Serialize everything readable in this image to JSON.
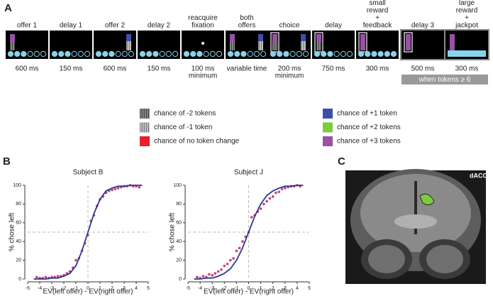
{
  "panel_labels": {
    "a": "A",
    "b": "B",
    "c": "C"
  },
  "timeline": {
    "stages": [
      {
        "label": [
          "offer 1"
        ],
        "duration": [
          "600 ms"
        ]
      },
      {
        "label": [
          "delay 1"
        ],
        "duration": [
          "150 ms"
        ]
      },
      {
        "label": [
          "offer 2"
        ],
        "duration": [
          "600 ms"
        ]
      },
      {
        "label": [
          "delay 2"
        ],
        "duration": [
          "150 ms"
        ]
      },
      {
        "label": [
          "reacquire",
          "fixation"
        ],
        "duration": [
          "100 ms",
          "minimum"
        ]
      },
      {
        "label": [
          "both",
          "offers"
        ],
        "duration": [
          "variable time"
        ]
      },
      {
        "label": [
          "choice"
        ],
        "duration": [
          "200 ms",
          "minimum"
        ]
      },
      {
        "label": [
          "delay"
        ],
        "duration": [
          "750 ms"
        ]
      },
      {
        "label": [
          "small",
          "reward",
          "+",
          "feedback"
        ],
        "duration": [
          "300 ms"
        ]
      },
      {
        "label": [
          "delay 3"
        ],
        "duration": [
          "500 ms"
        ]
      },
      {
        "label": [
          "large",
          "reward",
          "+",
          "jackpot"
        ],
        "duration": [
          "300 ms"
        ]
      }
    ],
    "note": "when tokens ≥ 6"
  },
  "legend": {
    "items": [
      "chance of -2 tokens",
      "chance of -1 token",
      "chance of no token change",
      "chance of +1 token",
      "chance of +2 tokens",
      "chance of +3 tokens"
    ]
  },
  "chart_data": [
    {
      "type": "scatter",
      "title": "Subject B",
      "x_label": "EV(left offer) - EV(right offer)",
      "y_label": "% chose left",
      "xlim": [
        -5,
        5
      ],
      "xticks": [
        -5,
        -4,
        -3,
        -2,
        -1,
        0,
        1,
        2,
        3,
        4,
        5
      ],
      "ylim": [
        0,
        100
      ],
      "yticks": [
        0,
        20,
        40,
        60,
        80,
        100
      ],
      "hlines": [
        50
      ],
      "vlines": [
        0
      ],
      "series": [
        {
          "mode": "markers",
          "color": "#c7407f",
          "x": [
            -4.25,
            -4,
            -3.75,
            -3.5,
            -3.25,
            -3,
            -2.75,
            -2.5,
            -2.25,
            -2,
            -1.75,
            -1.5,
            -1.25,
            -1,
            -0.75,
            -0.5,
            -0.25,
            0,
            0.25,
            0.5,
            0.75,
            1,
            1.25,
            1.5,
            1.75,
            2,
            2.25,
            2.5,
            2.75,
            3,
            3.25,
            3.5,
            3.75,
            4,
            4.25
          ],
          "values": [
            2,
            1,
            1,
            2,
            1,
            2,
            2,
            3,
            3,
            4,
            6,
            8,
            12,
            20,
            22,
            30,
            38,
            47,
            62,
            68,
            78,
            85,
            88,
            92,
            94,
            95,
            96,
            97,
            98,
            99,
            99,
            100,
            99,
            99,
            98
          ]
        },
        {
          "mode": "line",
          "color": "#2b3990",
          "x": [
            -4.5,
            -4,
            -3.5,
            -3,
            -2.5,
            -2,
            -1.5,
            -1,
            -0.5,
            0,
            0.5,
            1,
            1.5,
            2,
            2.5,
            3,
            3.5,
            4,
            4.5
          ],
          "values": [
            0,
            0,
            0,
            1,
            1,
            3,
            6,
            14,
            30,
            50,
            70,
            85,
            94,
            97,
            99,
            99,
            100,
            100,
            100
          ]
        }
      ]
    },
    {
      "type": "scatter",
      "title": "Subject J",
      "x_label": "EV(left offer) - EV(right offer)",
      "y_label": "% chose left",
      "xlim": [
        -5,
        5
      ],
      "xticks": [
        -5,
        -4,
        -3,
        -2,
        -1,
        0,
        1,
        2,
        3,
        4,
        5
      ],
      "ylim": [
        0,
        100
      ],
      "yticks": [
        0,
        20,
        40,
        60,
        80,
        100
      ],
      "hlines": [
        50
      ],
      "vlines": [
        0
      ],
      "series": [
        {
          "mode": "markers",
          "color": "#c7407f",
          "x": [
            -4.25,
            -4,
            -3.75,
            -3.5,
            -3.25,
            -3,
            -2.75,
            -2.5,
            -2.25,
            -2,
            -1.75,
            -1.5,
            -1.25,
            -1,
            -0.75,
            -0.5,
            -0.25,
            0,
            0.25,
            0.5,
            0.75,
            1,
            1.25,
            1.5,
            1.75,
            2,
            2.25,
            2.5,
            2.75,
            3,
            3.25,
            3.5,
            3.75,
            4,
            4.25
          ],
          "values": [
            2,
            1,
            3,
            2,
            5,
            4,
            6,
            8,
            10,
            14,
            16,
            20,
            22,
            30,
            33,
            40,
            45,
            50,
            66,
            68,
            72,
            75,
            80,
            83,
            86,
            88,
            92,
            93,
            96,
            97,
            98,
            99,
            99,
            100,
            99
          ]
        },
        {
          "mode": "line",
          "color": "#2b3990",
          "x": [
            -4.5,
            -4,
            -3.5,
            -3,
            -2.5,
            -2,
            -1.5,
            -1,
            -0.5,
            0,
            0.5,
            1,
            1.5,
            2,
            2.5,
            3,
            3.5,
            4,
            4.5
          ],
          "values": [
            0,
            0,
            1,
            1,
            3,
            6,
            11,
            20,
            33,
            50,
            67,
            80,
            89,
            94,
            97,
            99,
            99,
            100,
            100
          ]
        }
      ]
    }
  ],
  "brain_image": {
    "label": "dACC"
  }
}
